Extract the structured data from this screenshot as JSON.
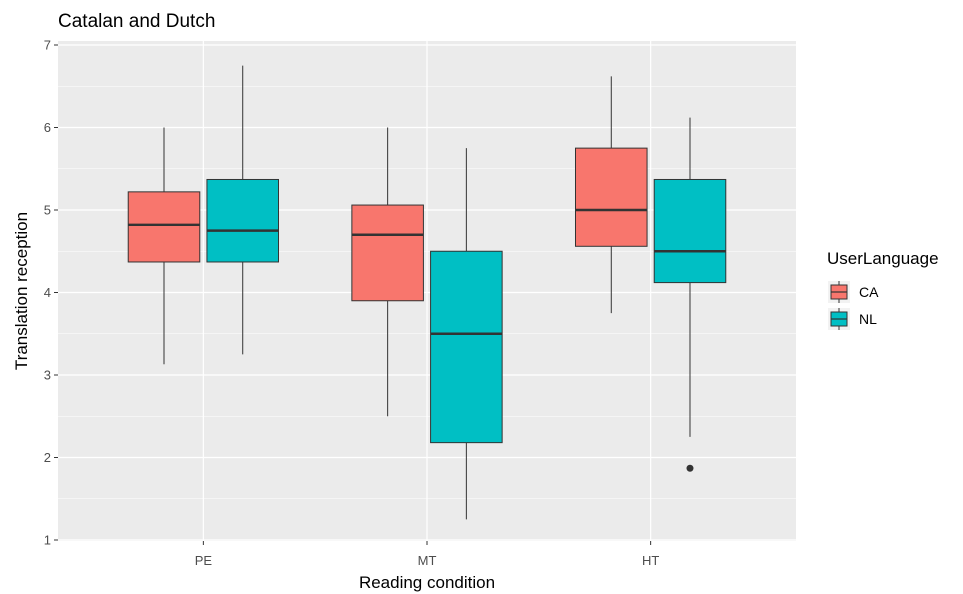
{
  "chart_data": {
    "type": "boxplot",
    "title": "Catalan and Dutch",
    "xlabel": "Reading condition",
    "ylabel": "Translation reception",
    "categories": [
      "PE",
      "MT",
      "HT"
    ],
    "ylim": [
      1,
      7
    ],
    "yticks": [
      1,
      2,
      3,
      4,
      5,
      6,
      7
    ],
    "grid": true,
    "legend": {
      "title": "UserLanguage",
      "placement": "right"
    },
    "series": [
      {
        "name": "CA",
        "color": "#f8766d",
        "boxes": [
          {
            "category": "PE",
            "min": 3.13,
            "q1": 4.37,
            "median": 4.82,
            "q3": 5.22,
            "max": 6.0,
            "outliers": []
          },
          {
            "category": "MT",
            "min": 2.5,
            "q1": 3.9,
            "median": 4.7,
            "q3": 5.06,
            "max": 6.0,
            "outliers": []
          },
          {
            "category": "HT",
            "min": 3.75,
            "q1": 4.56,
            "median": 5.0,
            "q3": 5.75,
            "max": 6.62,
            "outliers": []
          }
        ]
      },
      {
        "name": "NL",
        "color": "#00bfc4",
        "boxes": [
          {
            "category": "PE",
            "min": 3.25,
            "q1": 4.37,
            "median": 4.75,
            "q3": 5.37,
            "max": 6.75,
            "outliers": []
          },
          {
            "category": "MT",
            "min": 1.25,
            "q1": 2.18,
            "median": 3.5,
            "q3": 4.5,
            "max": 5.75,
            "outliers": []
          },
          {
            "category": "HT",
            "min": 2.25,
            "q1": 4.12,
            "median": 4.5,
            "q3": 5.37,
            "max": 6.12,
            "outliers": [
              1.87
            ]
          }
        ]
      }
    ]
  }
}
